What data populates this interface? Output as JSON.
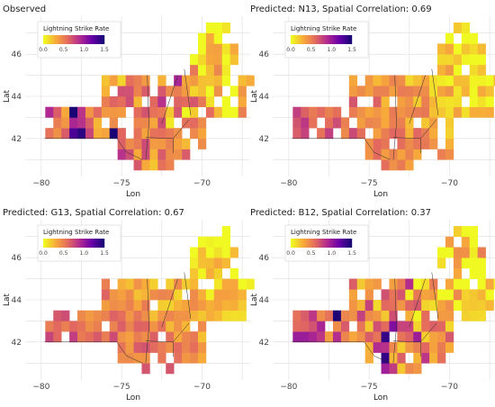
{
  "figure": {
    "colors": {
      "background": "#ffffff",
      "panel_bg": "#ebebeb",
      "grid": "#ffffff",
      "border": "#2b2b2b",
      "text": "#222222",
      "tick_text": "#444444"
    }
  },
  "chart_data": [
    {
      "type": "heatmap",
      "title": "Observed",
      "xlabel": "Lon",
      "ylabel": "Lat",
      "xlim": [
        -81,
        -67
      ],
      "ylim": [
        40.2,
        47.8
      ],
      "xticks": [
        "−80",
        "−75",
        "−70"
      ],
      "xtick_values": [
        -80,
        -75,
        -70
      ],
      "yticks": [
        "42",
        "44",
        "46"
      ],
      "ytick_values": [
        42,
        44,
        46
      ],
      "grid": true,
      "legend": {
        "title": "Lightning Strike Rate",
        "position": "top-left",
        "min": 0.0,
        "max": 1.5,
        "ticks": [
          "0.0",
          "0.5",
          "1.0",
          "1.5"
        ],
        "tick_values": [
          0,
          0.5,
          1.0,
          1.5
        ]
      },
      "colorscale": [
        "#f0f921",
        "#f7a93a",
        "#e36a5e",
        "#b12a90",
        "#6a00a8",
        "#1a0575"
      ],
      "intensity": "high",
      "seed": 11
    },
    {
      "type": "heatmap",
      "title": "Predicted: N13, Spatial Correlation: 0.69",
      "xlabel": "Lon",
      "ylabel": "Lat",
      "xlim": [
        -81,
        -67
      ],
      "ylim": [
        40.2,
        47.8
      ],
      "xticks": [
        "−80",
        "−75",
        "−70"
      ],
      "xtick_values": [
        -80,
        -75,
        -70
      ],
      "yticks": [
        "42",
        "44",
        "46"
      ],
      "ytick_values": [
        42,
        44,
        46
      ],
      "grid": true,
      "legend": {
        "title": "Lightning Strike Rate",
        "position": "top-left",
        "min": 0.0,
        "max": 1.5,
        "ticks": [
          "0.0",
          "0.5",
          "1.0",
          "1.5"
        ],
        "tick_values": [
          0,
          0.5,
          1.0,
          1.5
        ]
      },
      "colorscale": [
        "#f0f921",
        "#f7a93a",
        "#e36a5e",
        "#b12a90",
        "#6a00a8",
        "#1a0575"
      ],
      "intensity": "medium",
      "seed": 23
    },
    {
      "type": "heatmap",
      "title": "Predicted: G13, Spatial Correlation: 0.67",
      "xlabel": "Lon",
      "ylabel": "Lat",
      "xlim": [
        -81,
        -67
      ],
      "ylim": [
        40.2,
        47.8
      ],
      "xticks": [
        "−80",
        "−75",
        "−70"
      ],
      "xtick_values": [
        -80,
        -75,
        -70
      ],
      "yticks": [
        "42",
        "44",
        "46"
      ],
      "ytick_values": [
        42,
        44,
        46
      ],
      "grid": true,
      "legend": {
        "title": "Lightning Strike Rate",
        "position": "top-left",
        "min": 0.0,
        "max": 1.5,
        "ticks": [
          "0.0",
          "0.5",
          "1.0",
          "1.5"
        ],
        "tick_values": [
          0,
          0.5,
          1.0,
          1.5
        ]
      },
      "colorscale": [
        "#f0f921",
        "#f7a93a",
        "#e36a5e",
        "#b12a90",
        "#6a00a8",
        "#1a0575"
      ],
      "intensity": "medium",
      "seed": 37
    },
    {
      "type": "heatmap",
      "title": "Predicted: B12, Spatial Correlation: 0.37",
      "xlabel": "Lon",
      "ylabel": "Lat",
      "xlim": [
        -81,
        -67
      ],
      "ylim": [
        40.2,
        47.8
      ],
      "xticks": [
        "−80",
        "−75",
        "−70"
      ],
      "xtick_values": [
        -80,
        -75,
        -70
      ],
      "yticks": [
        "42",
        "44",
        "46"
      ],
      "ytick_values": [
        42,
        44,
        46
      ],
      "grid": true,
      "legend": {
        "title": "Lightning Strike Rate",
        "position": "top-left",
        "min": 0.0,
        "max": 1.5,
        "ticks": [
          "0.0",
          "0.5",
          "1.0",
          "1.5"
        ],
        "tick_values": [
          0,
          0.5,
          1.0,
          1.5
        ]
      },
      "colorscale": [
        "#f0f921",
        "#f7a93a",
        "#e36a5e",
        "#b12a90",
        "#6a00a8",
        "#1a0575"
      ],
      "intensity": "high",
      "seed": 51
    }
  ]
}
